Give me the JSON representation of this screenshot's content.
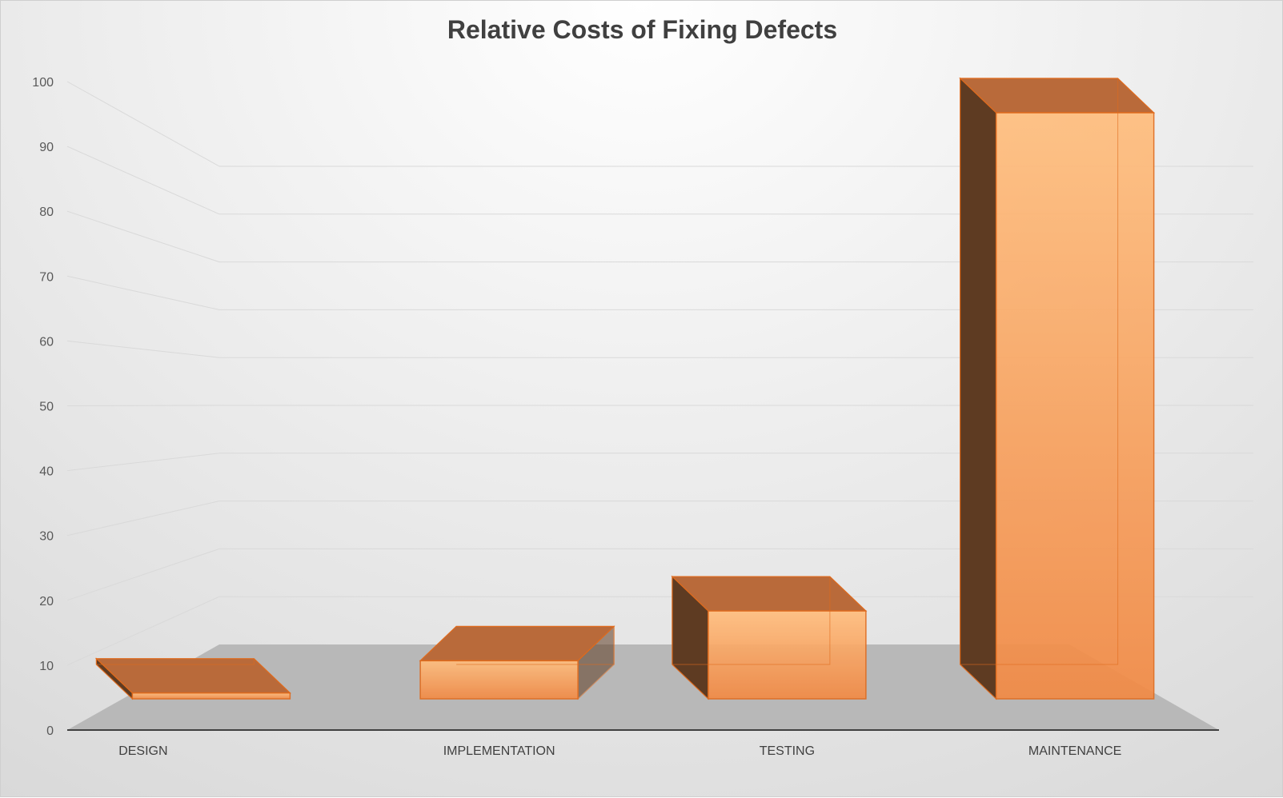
{
  "chart_data": {
    "type": "bar",
    "title": "Relative Costs of Fixing Defects",
    "categories": [
      "DESIGN",
      "IMPLEMENTATION",
      "TESTING",
      "MAINTENANCE"
    ],
    "values": [
      1,
      6.5,
      15,
      100
    ],
    "ylim": [
      0,
      100
    ],
    "yticks": [
      0,
      10,
      20,
      30,
      40,
      50,
      60,
      70,
      80,
      90,
      100
    ],
    "xlabel": "",
    "ylabel": "",
    "grid": true,
    "legend": "none",
    "style": "3d-column",
    "colors": {
      "bar_front": "#f79646",
      "bar_side": "#5e3b22",
      "bar_top": "#b96a3a",
      "bar_edge": "#e06a1c",
      "floor": "#b8b8b8",
      "gridline": "#d9d9d9",
      "axis": "#404040"
    }
  }
}
